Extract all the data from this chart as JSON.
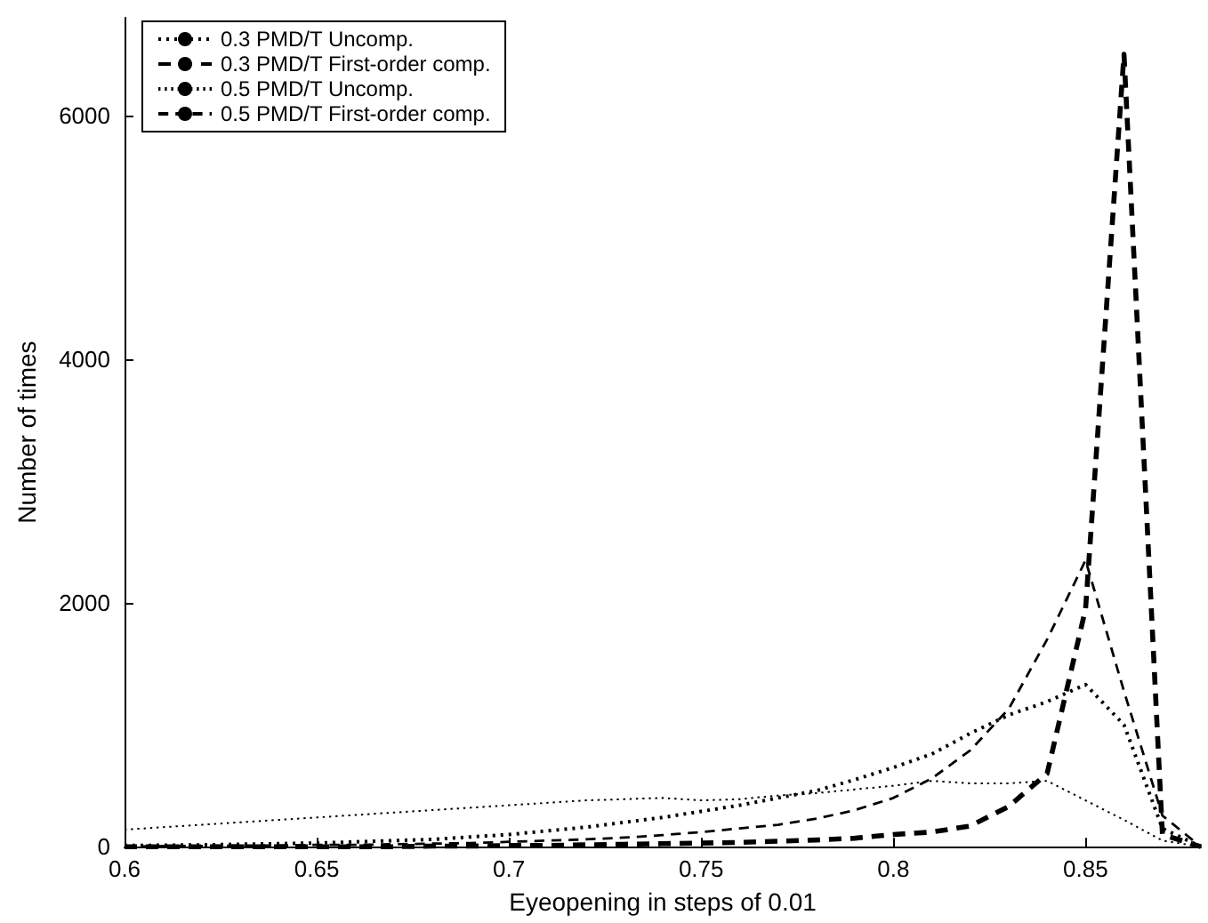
{
  "chart_data": {
    "type": "line",
    "xlabel": "Eyeopening in steps of 0.01",
    "ylabel": "Number of times",
    "x": [
      0.6,
      0.61,
      0.62,
      0.63,
      0.64,
      0.65,
      0.66,
      0.67,
      0.68,
      0.69,
      0.7,
      0.71,
      0.72,
      0.73,
      0.74,
      0.75,
      0.76,
      0.77,
      0.78,
      0.79,
      0.8,
      0.81,
      0.82,
      0.83,
      0.84,
      0.85,
      0.86,
      0.87,
      0.88
    ],
    "series": [
      {
        "name": "0.3 PMD/T Uncomp.",
        "color": "#000000",
        "line_style": "dotted",
        "values": [
          10,
          12,
          15,
          20,
          25,
          30,
          40,
          50,
          60,
          80,
          100,
          130,
          160,
          200,
          240,
          290,
          340,
          400,
          460,
          550,
          650,
          760,
          930,
          1080,
          1190,
          1330,
          1000,
          150,
          0
        ]
      },
      {
        "name": "0.3 PMD/T First-order comp.",
        "color": "#000000",
        "line_style": "dashed",
        "values": [
          0,
          0,
          0,
          0,
          0,
          0,
          0,
          0,
          5,
          5,
          10,
          10,
          15,
          20,
          25,
          30,
          35,
          45,
          55,
          70,
          100,
          120,
          170,
          330,
          600,
          1950,
          6500,
          100,
          0
        ]
      },
      {
        "name": "0.5 PMD/T Uncomp.",
        "color": "#000000",
        "line_style": "dotted",
        "values": [
          140,
          160,
          180,
          200,
          220,
          240,
          260,
          280,
          300,
          320,
          340,
          360,
          380,
          390,
          400,
          380,
          390,
          420,
          440,
          470,
          500,
          540,
          520,
          520,
          540,
          380,
          220,
          50,
          0
        ]
      },
      {
        "name": "0.5 PMD/T First-order comp.",
        "color": "#000000",
        "line_style": "dashed",
        "values": [
          0,
          5,
          5,
          10,
          10,
          15,
          15,
          20,
          25,
          30,
          40,
          50,
          60,
          75,
          95,
          120,
          150,
          180,
          230,
          300,
          400,
          560,
          790,
          1130,
          1700,
          2350,
          1275,
          255,
          0
        ]
      }
    ],
    "xlim": [
      0.6,
      0.88
    ],
    "xticks": [
      0.6,
      0.65,
      0.7,
      0.75,
      0.8,
      0.85
    ],
    "ylim": [
      0,
      6800
    ],
    "yticks": [
      0,
      2000,
      4000,
      6000
    ],
    "grid": false,
    "legend": "top left",
    "marker": "none"
  }
}
